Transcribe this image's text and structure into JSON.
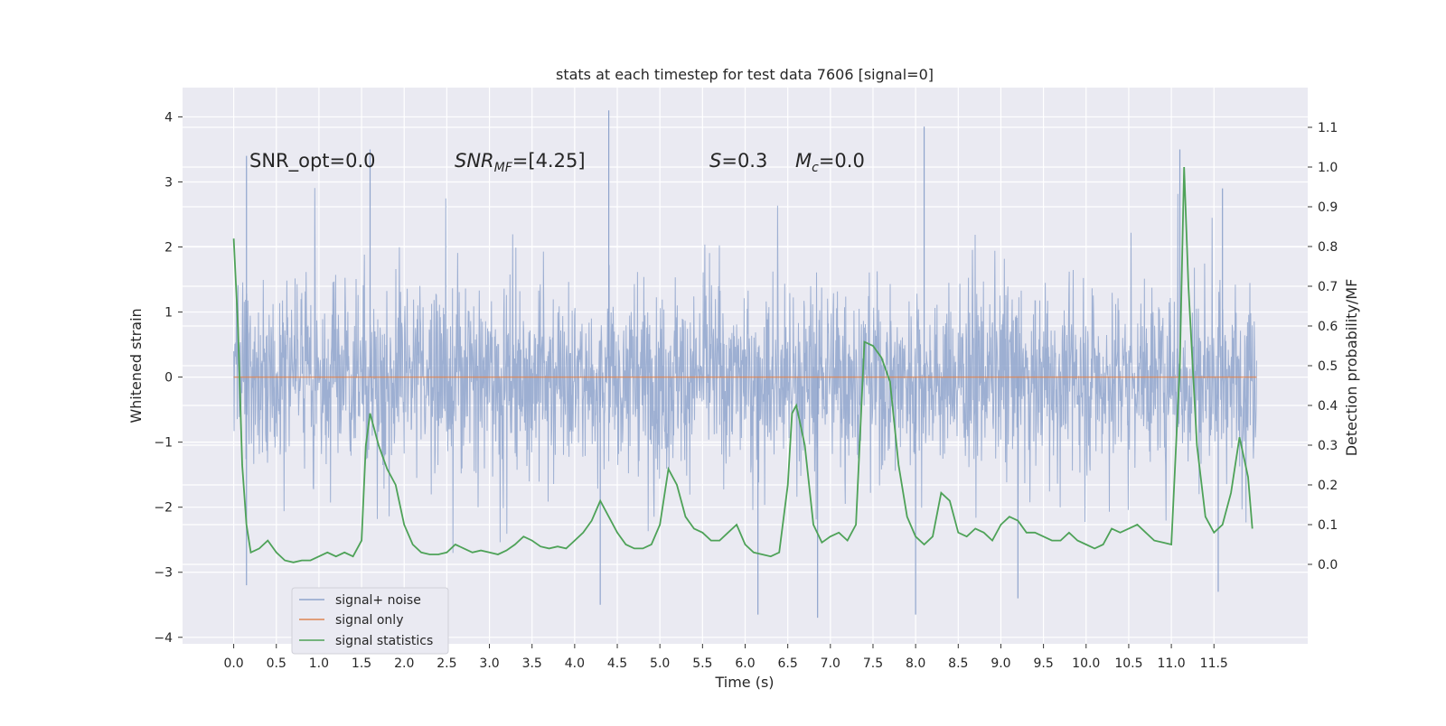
{
  "chart_data": {
    "type": "line",
    "title": "stats at each timestep for test data 7606 [signal=0]",
    "xlabel": "Time (s)",
    "ylabel_left": "Whitened strain",
    "ylabel_right": "Detection probability/MF",
    "xlim": [
      -0.6,
      12.6
    ],
    "ylim_left": [
      -4.1,
      4.45
    ],
    "ylim_right": [
      -0.2,
      1.2
    ],
    "x_ticks": [
      "0.0",
      "0.5",
      "1.0",
      "1.5",
      "2.0",
      "2.5",
      "3.0",
      "3.5",
      "4.0",
      "4.5",
      "5.0",
      "5.5",
      "6.0",
      "6.5",
      "7.0",
      "7.5",
      "8.0",
      "8.5",
      "9.0",
      "9.5",
      "10.0",
      "10.5",
      "11.0",
      "11.5"
    ],
    "y_ticks_left": [
      "−4",
      "−3",
      "−2",
      "−1",
      "0",
      "1",
      "2",
      "3",
      "4"
    ],
    "y_ticks_right": [
      "0.0",
      "0.1",
      "0.2",
      "0.3",
      "0.4",
      "0.5",
      "0.6",
      "0.7",
      "0.8",
      "0.9",
      "1.0",
      "1.1"
    ],
    "grid": true,
    "legend_position": "lower-left",
    "legend": [
      "signal+ noise",
      "signal only",
      "signal statistics"
    ],
    "annotations": {
      "snr_opt": "SNR_opt=0.0",
      "snr_mf_main": "SNR",
      "snr_mf_sub": "MF",
      "snr_mf_rest": "=[4.25]",
      "s_main": "S",
      "s_rest": "=0.3",
      "mc_main": "M",
      "mc_sub": "c",
      "mc_rest": "=0.0"
    },
    "series": [
      {
        "name": "signal+ noise",
        "axis": "left",
        "color": "#8fa4cc",
        "x_range": [
          0.0,
          12.0
        ],
        "core_range": [
          -1.6,
          1.45
        ],
        "notable_peaks": [
          {
            "x": 0.15,
            "y": 3.4
          },
          {
            "x": 1.6,
            "y": 3.5
          },
          {
            "x": 4.4,
            "y": 4.1
          },
          {
            "x": 8.1,
            "y": 3.85
          },
          {
            "x": 11.1,
            "y": 3.5
          },
          {
            "x": 11.6,
            "y": 2.9
          }
        ],
        "notable_troughs": [
          {
            "x": 0.15,
            "y": -3.2
          },
          {
            "x": 4.3,
            "y": -3.5
          },
          {
            "x": 6.15,
            "y": -3.65
          },
          {
            "x": 6.85,
            "y": -3.7
          },
          {
            "x": 8.0,
            "y": -3.65
          },
          {
            "x": 9.2,
            "y": -3.4
          },
          {
            "x": 11.55,
            "y": -3.3
          }
        ]
      },
      {
        "name": "signal only",
        "axis": "left",
        "color": "#dd8452",
        "x": [
          0.0,
          12.0
        ],
        "y": [
          0.0,
          0.0
        ]
      },
      {
        "name": "signal statistics",
        "axis": "right",
        "color": "#4ea258",
        "x": [
          0.0,
          0.05,
          0.1,
          0.15,
          0.2,
          0.3,
          0.4,
          0.5,
          0.6,
          0.7,
          0.8,
          0.9,
          1.0,
          1.1,
          1.2,
          1.3,
          1.4,
          1.5,
          1.55,
          1.6,
          1.7,
          1.8,
          1.9,
          2.0,
          2.1,
          2.2,
          2.3,
          2.4,
          2.5,
          2.6,
          2.7,
          2.8,
          2.9,
          3.0,
          3.1,
          3.2,
          3.3,
          3.4,
          3.5,
          3.6,
          3.7,
          3.8,
          3.9,
          4.0,
          4.1,
          4.2,
          4.3,
          4.4,
          4.5,
          4.6,
          4.7,
          4.8,
          4.9,
          5.0,
          5.1,
          5.2,
          5.3,
          5.4,
          5.5,
          5.6,
          5.7,
          5.8,
          5.9,
          6.0,
          6.1,
          6.2,
          6.3,
          6.4,
          6.5,
          6.55,
          6.6,
          6.7,
          6.8,
          6.9,
          7.0,
          7.1,
          7.2,
          7.3,
          7.4,
          7.5,
          7.6,
          7.7,
          7.8,
          7.9,
          8.0,
          8.1,
          8.2,
          8.3,
          8.4,
          8.5,
          8.6,
          8.7,
          8.8,
          8.9,
          9.0,
          9.1,
          9.2,
          9.3,
          9.4,
          9.5,
          9.6,
          9.7,
          9.8,
          9.9,
          10.0,
          10.1,
          10.2,
          10.3,
          10.4,
          10.5,
          10.6,
          10.7,
          10.8,
          10.9,
          11.0,
          11.1,
          11.15,
          11.2,
          11.3,
          11.4,
          11.5,
          11.6,
          11.7,
          11.8,
          11.9,
          11.95
        ],
        "y": [
          0.82,
          0.6,
          0.25,
          0.1,
          0.03,
          0.04,
          0.06,
          0.03,
          0.01,
          0.005,
          0.01,
          0.01,
          0.02,
          0.03,
          0.02,
          0.03,
          0.02,
          0.06,
          0.3,
          0.38,
          0.3,
          0.24,
          0.2,
          0.1,
          0.05,
          0.03,
          0.025,
          0.025,
          0.03,
          0.05,
          0.04,
          0.03,
          0.035,
          0.03,
          0.025,
          0.035,
          0.05,
          0.07,
          0.06,
          0.045,
          0.04,
          0.045,
          0.04,
          0.06,
          0.08,
          0.11,
          0.16,
          0.12,
          0.08,
          0.05,
          0.04,
          0.04,
          0.05,
          0.1,
          0.24,
          0.2,
          0.12,
          0.09,
          0.08,
          0.06,
          0.06,
          0.08,
          0.1,
          0.05,
          0.03,
          0.025,
          0.02,
          0.03,
          0.2,
          0.38,
          0.4,
          0.3,
          0.1,
          0.055,
          0.07,
          0.08,
          0.06,
          0.1,
          0.56,
          0.55,
          0.52,
          0.46,
          0.25,
          0.12,
          0.07,
          0.05,
          0.07,
          0.18,
          0.16,
          0.08,
          0.07,
          0.09,
          0.08,
          0.06,
          0.1,
          0.12,
          0.11,
          0.08,
          0.08,
          0.07,
          0.06,
          0.06,
          0.08,
          0.06,
          0.05,
          0.04,
          0.05,
          0.09,
          0.08,
          0.09,
          0.1,
          0.08,
          0.06,
          0.055,
          0.05,
          0.5,
          1.0,
          0.7,
          0.3,
          0.12,
          0.08,
          0.1,
          0.18,
          0.32,
          0.22,
          0.09
        ]
      }
    ]
  }
}
